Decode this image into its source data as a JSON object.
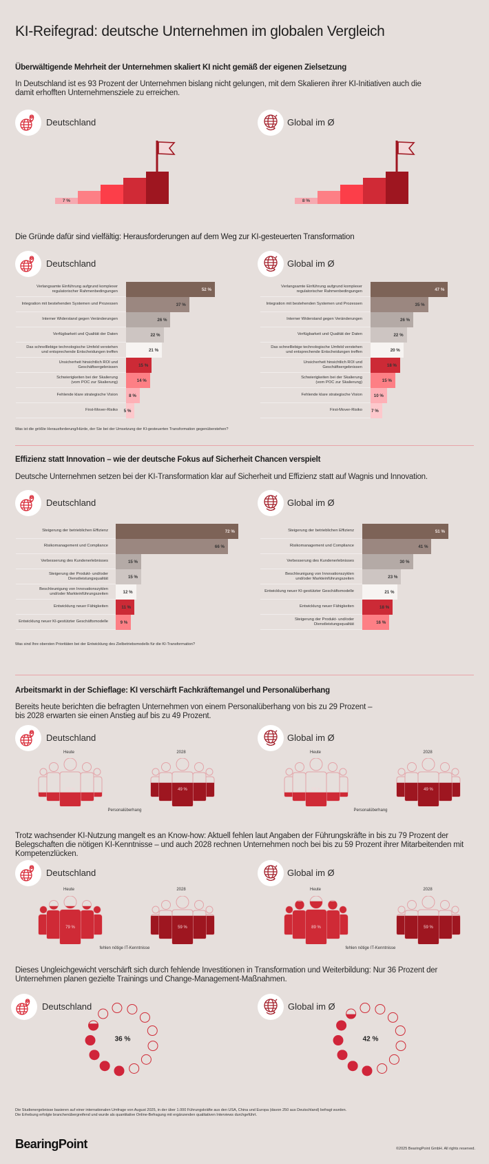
{
  "title": "KI-Reifegrad: deutsche Unternehmen im globalen Vergleich",
  "regions": {
    "de": "Deutschland",
    "global": "Global im Ø"
  },
  "colors": {
    "background": "#e6dfdc",
    "accent": "#cf2a36",
    "dark_red": "#9e1620",
    "outline": "#e3a3a8",
    "bars": [
      "#7d6357",
      "#9b8780",
      "#b4aaa6",
      "#cdc5c2",
      "#f7f4f2",
      "#cc2a36",
      "#fd7f85",
      "#fdb0b6",
      "#fdc8cc"
    ],
    "steps": [
      "#f6a9b0",
      "#fd7f85",
      "#fc3e49",
      "#d02a36",
      "#9e1620"
    ]
  },
  "section1": {
    "heading": "Überwältigende Mehrheit der Unternehmen skaliert KI nicht gemäß der eigenen Zielsetzung",
    "text": "In Deutschland ist es 93 Prozent der Unternehmen bislang nicht gelungen, mit dem Skalieren ihrer KI-Initiativen auch die damit erhofften Unternehmensziele zu erreichen.",
    "de": {
      "value": 7,
      "label": "7 %"
    },
    "global": {
      "value": 8,
      "label": "8 %"
    }
  },
  "section2": {
    "heading": "Die Gründe dafür sind vielfältig: Herausforderungen auf dem Weg zur KI-gesteuerten Transformation",
    "question": "Was ist die größte Herausforderung/Hürde, der Sie bei der Umsetzung der KI-gesteuerten Transformation gegenüberstehen?"
  },
  "section3": {
    "heading": "Effizienz statt Innovation – wie der deutsche Fokus auf Sicherheit Chancen verspielt",
    "text": "Deutsche Unternehmen setzen bei der KI-Transformation klar auf Sicherheit und Effizienz statt auf Wagnis und Innovation.",
    "question": "Was sind Ihre obersten Prioritäten bei der Entwicklung des Zielbetriebsmodells für die KI-Transformation?"
  },
  "section4": {
    "heading": "Arbeitsmarkt in der Schieflage: KI verschärft Fachkräftemangel und Personalüberhang",
    "text": "Bereits heute berichten die befragten Unternehmen von einem Personalüberhang von bis zu 29 Prozent –\nbis 2028 erwarten sie einen Anstieg auf bis zu 49 Prozent.",
    "today_label": "Heute",
    "future_label": "2028",
    "caption": "Personalüberhang",
    "de": {
      "today": 29,
      "today_label": "29 %",
      "future": 49,
      "future_label": "49 %"
    },
    "global": {
      "today": 29,
      "today_label": "29 %",
      "future": 49,
      "future_label": "49 %"
    }
  },
  "section5": {
    "text": "Trotz wachsender KI-Nutzung mangelt es an Know-how: Aktuell fehlen laut Angaben der Führungskräfte in bis zu 79 Prozent der Belegschaften die nötigen KI-Kenntnisse – und auch 2028 rechnen Unternehmen noch bei bis zu 59 Prozent ihrer Mitarbeitenden mit Kompetenzlücken.",
    "today_label": "Heute",
    "future_label": "2028",
    "caption": "fehlen nötige IT-Kenntnisse",
    "de": {
      "today": 79,
      "today_label": "79 %",
      "future": 59,
      "future_label": "59 %"
    },
    "global": {
      "today": 89,
      "today_label": "89 %",
      "future": 59,
      "future_label": "59 %"
    }
  },
  "section6": {
    "text": "Dieses Ungleichgewicht verschärft sich durch fehlende Investitionen in Transformation und Weiterbildung: Nur 36 Prozent der Unternehmen planen gezielte Trainings und Change-Management-Maßnahmen.",
    "de": {
      "value": 36,
      "label": "36 %"
    },
    "global": {
      "value": 42,
      "label": "42 %"
    }
  },
  "footnote": "Die Studienergebnisse basieren auf einer internationalen Umfrage von August 2025, in der über 1.000 Führungskräfte aus den USA, China und Europa (davon 250 aus Deutschland) befragt wurden.\nDie Erhebung erfolgte branchenübergreifend und wurde als quantitative Online-Befragung mit ergänzenden qualitativen Interviews durchgeführt.",
  "logo": "BearingPoint",
  "copyright": "©2025 BearingPoint GmbH. All rights reserved.",
  "chart_data": [
    {
      "type": "bar",
      "orientation": "horizontal",
      "region": "Deutschland",
      "unit": "%",
      "categories": [
        "Verlangsamte Einführung aufgrund komplexer\nregulatorischer Rahmenbedingungen",
        "Integration mit bestehenden Systemen und Prozessen",
        "Interner Widerstand gegen Veränderungen",
        "Verfügbarkeit und Qualität der Daten",
        "Das schnelllebige technologische Umfeld verstehen\nund entsprechende Entscheidungen treffen",
        "Unsicherheit hinsichtlich ROI und\nGeschäftsergebnissen",
        "Schwierigkeiten bei der Skalierung\n(vom POC zur Skalierung)",
        "Fehlende klare strategische Vision",
        "First-Mover-Risiko"
      ],
      "values": [
        52,
        37,
        26,
        22,
        21,
        15,
        14,
        8,
        5
      ],
      "value_labels": [
        "52 %",
        "37 %",
        "26 %",
        "22 %",
        "21 %",
        "15 %",
        "14 %",
        "8 %",
        "5 %"
      ]
    },
    {
      "type": "bar",
      "orientation": "horizontal",
      "region": "Global im Ø",
      "unit": "%",
      "categories": [
        "Verlangsamte Einführung aufgrund komplexer\nregulatorischer Rahmenbedingungen",
        "Integration mit bestehenden Systemen und Prozessen",
        "Interner Widerstand gegen Veränderungen",
        "Verfügbarkeit und Qualität der Daten",
        "Das schnelllebige technologische Umfeld verstehen\nund entsprechende Entscheidungen treffen",
        "Unsicherheit hinsichtlich ROI und\nGeschäftsergebnissen",
        "Schwierigkeiten bei der Skalierung\n(vom POC zur Skalierung)",
        "Fehlende klare strategische Vision",
        "First-Mover-Risiko"
      ],
      "values": [
        47,
        35,
        26,
        22,
        20,
        18,
        15,
        10,
        7
      ],
      "value_labels": [
        "47 %",
        "35 %",
        "26 %",
        "22 %",
        "20 %",
        "18 %",
        "15 %",
        "10 %",
        "7 %"
      ]
    },
    {
      "type": "bar",
      "orientation": "horizontal",
      "region": "Deutschland",
      "unit": "%",
      "categories": [
        "Steigerung der betrieblichen Effizienz",
        "Risikomanagement und Compliance",
        "Verbesserung des Kundenerlebnisses",
        "Steigerung der Produkt- und/oder\nDienstleistungsqualität",
        "Beschleunigung von Innovationszyklen\nund/oder Markteinführungszeiten",
        "Entwicklung neuer Fähigkeiten",
        "Entwicklung neuer KI-gestützter Geschäftsmodelle"
      ],
      "values": [
        72,
        66,
        15,
        15,
        12,
        11,
        9
      ],
      "value_labels": [
        "72 %",
        "66 %",
        "15 %",
        "15 %",
        "12 %",
        "11 %",
        "9 %"
      ]
    },
    {
      "type": "bar",
      "orientation": "horizontal",
      "region": "Global im Ø",
      "unit": "%",
      "categories": [
        "Steigerung der betrieblichen Effizienz",
        "Risikomanagement und Compliance",
        "Verbesserung des Kundenerlebnisses",
        "Beschleunigung von Innovationszyklen\nund/oder Markteinführungszeiten",
        "Entwicklung neuer KI-gestützter Geschäftsmodelle",
        "Entwicklung neuer Fähigkeiten",
        "Steigerung der Produkt- und/oder\nDienstleistungsqualität"
      ],
      "values": [
        51,
        41,
        30,
        23,
        21,
        18,
        16
      ],
      "value_labels": [
        "51 %",
        "41 %",
        "30 %",
        "23 %",
        "21 %",
        "18 %",
        "16 %"
      ]
    }
  ]
}
